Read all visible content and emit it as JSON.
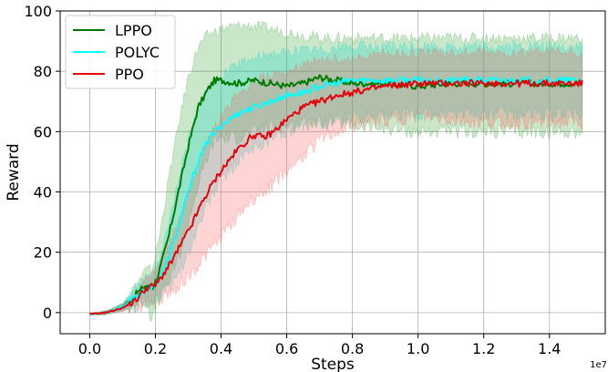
{
  "chart_data": {
    "type": "line",
    "title": "",
    "xlabel": "Steps",
    "ylabel": "Reward",
    "x_offset_label": "1e7",
    "xlim": [
      -0.09,
      1.57
    ],
    "ylim": [
      -7,
      100
    ],
    "xticks": [
      0.0,
      0.2,
      0.4,
      0.6,
      0.8,
      1.0,
      1.2,
      1.4
    ],
    "xtick_labels": [
      "0.0",
      "0.2",
      "0.4",
      "0.6",
      "0.8",
      "1.0",
      "1.2",
      "1.4"
    ],
    "yticks": [
      0,
      20,
      40,
      60,
      80,
      100
    ],
    "ytick_labels": [
      "0",
      "20",
      "40",
      "60",
      "80",
      "100"
    ],
    "grid": true,
    "legend_position": "top-left",
    "series": [
      {
        "name": "LPPO",
        "color": "#007a00",
        "band_color": "#2ca02c",
        "x": [
          0.0,
          0.05,
          0.1,
          0.14,
          0.17,
          0.19,
          0.21,
          0.24,
          0.27,
          0.3,
          0.33,
          0.36,
          0.38,
          0.4,
          0.45,
          0.5,
          0.55,
          0.6,
          0.65,
          0.7,
          0.75,
          0.8,
          0.9,
          1.0,
          1.1,
          1.2,
          1.3,
          1.4,
          1.5
        ],
        "y": [
          -0.5,
          0,
          2,
          6,
          9,
          8,
          13,
          25,
          40,
          55,
          68,
          74,
          77,
          77,
          76,
          77,
          76,
          75,
          76,
          78,
          77,
          76,
          76,
          75,
          76,
          76,
          76,
          76,
          76
        ],
        "upper": [
          -0.3,
          0.5,
          3,
          9,
          14,
          14,
          24,
          44,
          62,
          78,
          88,
          92,
          93,
          94,
          95,
          95,
          94,
          93,
          92,
          91,
          91,
          91,
          91,
          91,
          91,
          91,
          91,
          91,
          91
        ],
        "lower": [
          -0.8,
          -0.5,
          0.5,
          3,
          4,
          -2,
          4,
          10,
          18,
          30,
          42,
          52,
          57,
          58,
          58,
          60,
          62,
          62,
          63,
          63,
          63,
          62,
          61,
          60,
          60,
          60,
          60,
          60,
          60
        ]
      },
      {
        "name": "POLYC",
        "color": "#00ffff",
        "band_color": "#00d8c8",
        "x": [
          0.0,
          0.05,
          0.1,
          0.14,
          0.17,
          0.19,
          0.21,
          0.24,
          0.27,
          0.3,
          0.33,
          0.36,
          0.4,
          0.45,
          0.5,
          0.55,
          0.6,
          0.65,
          0.7,
          0.75,
          0.8,
          0.9,
          1.0,
          1.1,
          1.2,
          1.3,
          1.4,
          1.5
        ],
        "y": [
          -0.5,
          0,
          2,
          5,
          8,
          8,
          11,
          18,
          28,
          40,
          50,
          57,
          62,
          66,
          68,
          70,
          72,
          73,
          75,
          76,
          77,
          77,
          77,
          77,
          77,
          77,
          77,
          77
        ],
        "upper": [
          -0.3,
          0.5,
          3,
          8,
          12,
          13,
          18,
          30,
          44,
          58,
          68,
          74,
          78,
          82,
          84,
          86,
          86,
          87,
          87,
          88,
          88,
          88,
          88,
          88,
          88,
          88,
          88,
          88
        ],
        "lower": [
          -0.8,
          -0.5,
          0.5,
          2,
          4,
          4,
          5,
          8,
          13,
          20,
          28,
          36,
          44,
          50,
          54,
          58,
          60,
          62,
          63,
          64,
          65,
          66,
          66,
          66,
          66,
          66,
          66,
          66
        ]
      },
      {
        "name": "PPO",
        "color": "#e8000b",
        "band_color": "#ff5555",
        "x": [
          0.0,
          0.05,
          0.1,
          0.14,
          0.17,
          0.2,
          0.22,
          0.25,
          0.28,
          0.31,
          0.34,
          0.37,
          0.4,
          0.45,
          0.5,
          0.53,
          0.56,
          0.6,
          0.65,
          0.7,
          0.75,
          0.8,
          0.85,
          0.9,
          1.0,
          1.1,
          1.2,
          1.3,
          1.4,
          1.5
        ],
        "y": [
          -0.5,
          0,
          1.5,
          4,
          8,
          9,
          12,
          17,
          23,
          29,
          36,
          42,
          47,
          54,
          59,
          58,
          60,
          64,
          68,
          70,
          72,
          73,
          74,
          75,
          76,
          76,
          76,
          76,
          76,
          76
        ],
        "upper": [
          -0.3,
          0.5,
          2.5,
          6,
          11,
          13,
          18,
          25,
          33,
          42,
          51,
          59,
          65,
          72,
          76,
          78,
          79,
          80,
          82,
          83,
          84,
          84,
          85,
          86,
          86,
          86,
          86,
          86,
          86,
          86
        ],
        "lower": [
          -0.8,
          -0.5,
          0.5,
          2,
          3,
          4,
          5,
          7,
          10,
          13,
          17,
          21,
          25,
          32,
          38,
          40,
          43,
          47,
          52,
          57,
          60,
          62,
          63,
          64,
          65,
          64,
          63,
          63,
          63,
          63
        ]
      }
    ]
  }
}
